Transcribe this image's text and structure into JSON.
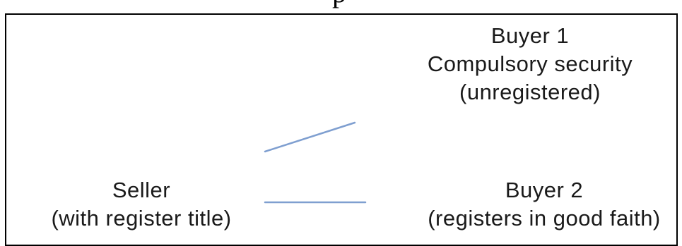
{
  "heading": {
    "text": "p"
  },
  "nodes": {
    "buyer1": {
      "lines": [
        "Buyer 1",
        "Compulsory security",
        "(unregistered)"
      ]
    },
    "seller": {
      "lines": [
        "Seller",
        "(with register title)"
      ]
    },
    "buyer2": {
      "lines": [
        "Buyer 2",
        "(registers in good faith)"
      ]
    }
  },
  "colors": {
    "connector": "#7f9fd0",
    "frame": "#000000",
    "text": "#1a1a1a"
  }
}
